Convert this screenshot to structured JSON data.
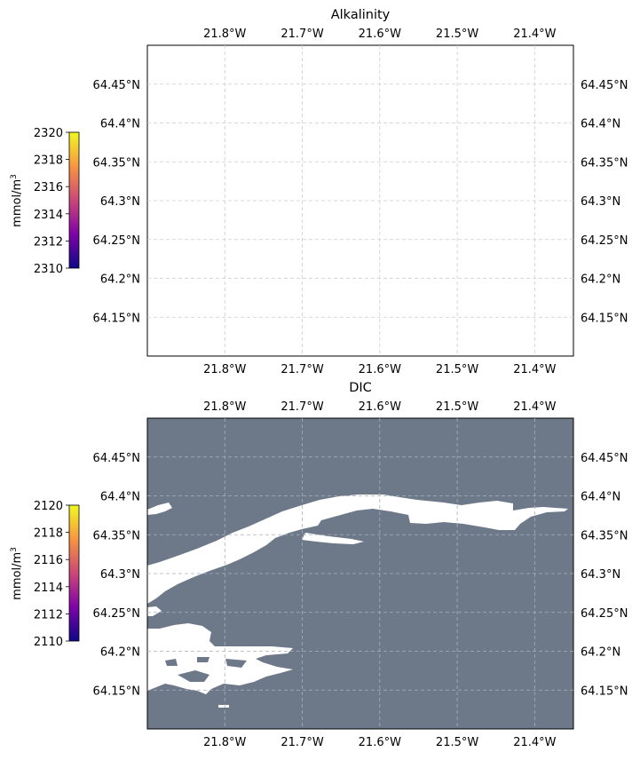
{
  "panels": [
    {
      "id": "alkalinity",
      "title": "Alkalinity",
      "colorbar": {
        "label": "mmol/m",
        "label_sup": "3",
        "min": 2310,
        "max": 2320,
        "ticks": [
          "2310",
          "2312",
          "2314",
          "2316",
          "2318",
          "2320"
        ]
      },
      "has_data": false
    },
    {
      "id": "dic",
      "title": "DIC",
      "colorbar": {
        "label": "mmol/m",
        "label_sup": "3",
        "min": 2110,
        "max": 2120,
        "ticks": [
          "2110",
          "2112",
          "2114",
          "2116",
          "2118",
          "2120"
        ]
      },
      "has_data": true,
      "water_color": "#6d7889",
      "land_color": "#ffffff"
    }
  ],
  "map": {
    "lon_range": [
      -21.9,
      -21.35
    ],
    "lat_range": [
      64.1,
      64.5
    ],
    "lon_ticks": [
      {
        "value": -21.8,
        "label": "21.8°W"
      },
      {
        "value": -21.7,
        "label": "21.7°W"
      },
      {
        "value": -21.6,
        "label": "21.6°W"
      },
      {
        "value": -21.5,
        "label": "21.5°W"
      },
      {
        "value": -21.4,
        "label": "21.4°W"
      }
    ],
    "lat_ticks": [
      {
        "value": 64.45,
        "label": "64.45°N"
      },
      {
        "value": 64.4,
        "label": "64.4°N"
      },
      {
        "value": 64.35,
        "label": "64.35°N"
      },
      {
        "value": 64.3,
        "label": "64.3°N"
      },
      {
        "value": 64.25,
        "label": "64.25°N"
      },
      {
        "value": 64.2,
        "label": "64.2°N"
      },
      {
        "value": 64.15,
        "label": "64.15°N"
      }
    ]
  },
  "colormap": "plasma"
}
